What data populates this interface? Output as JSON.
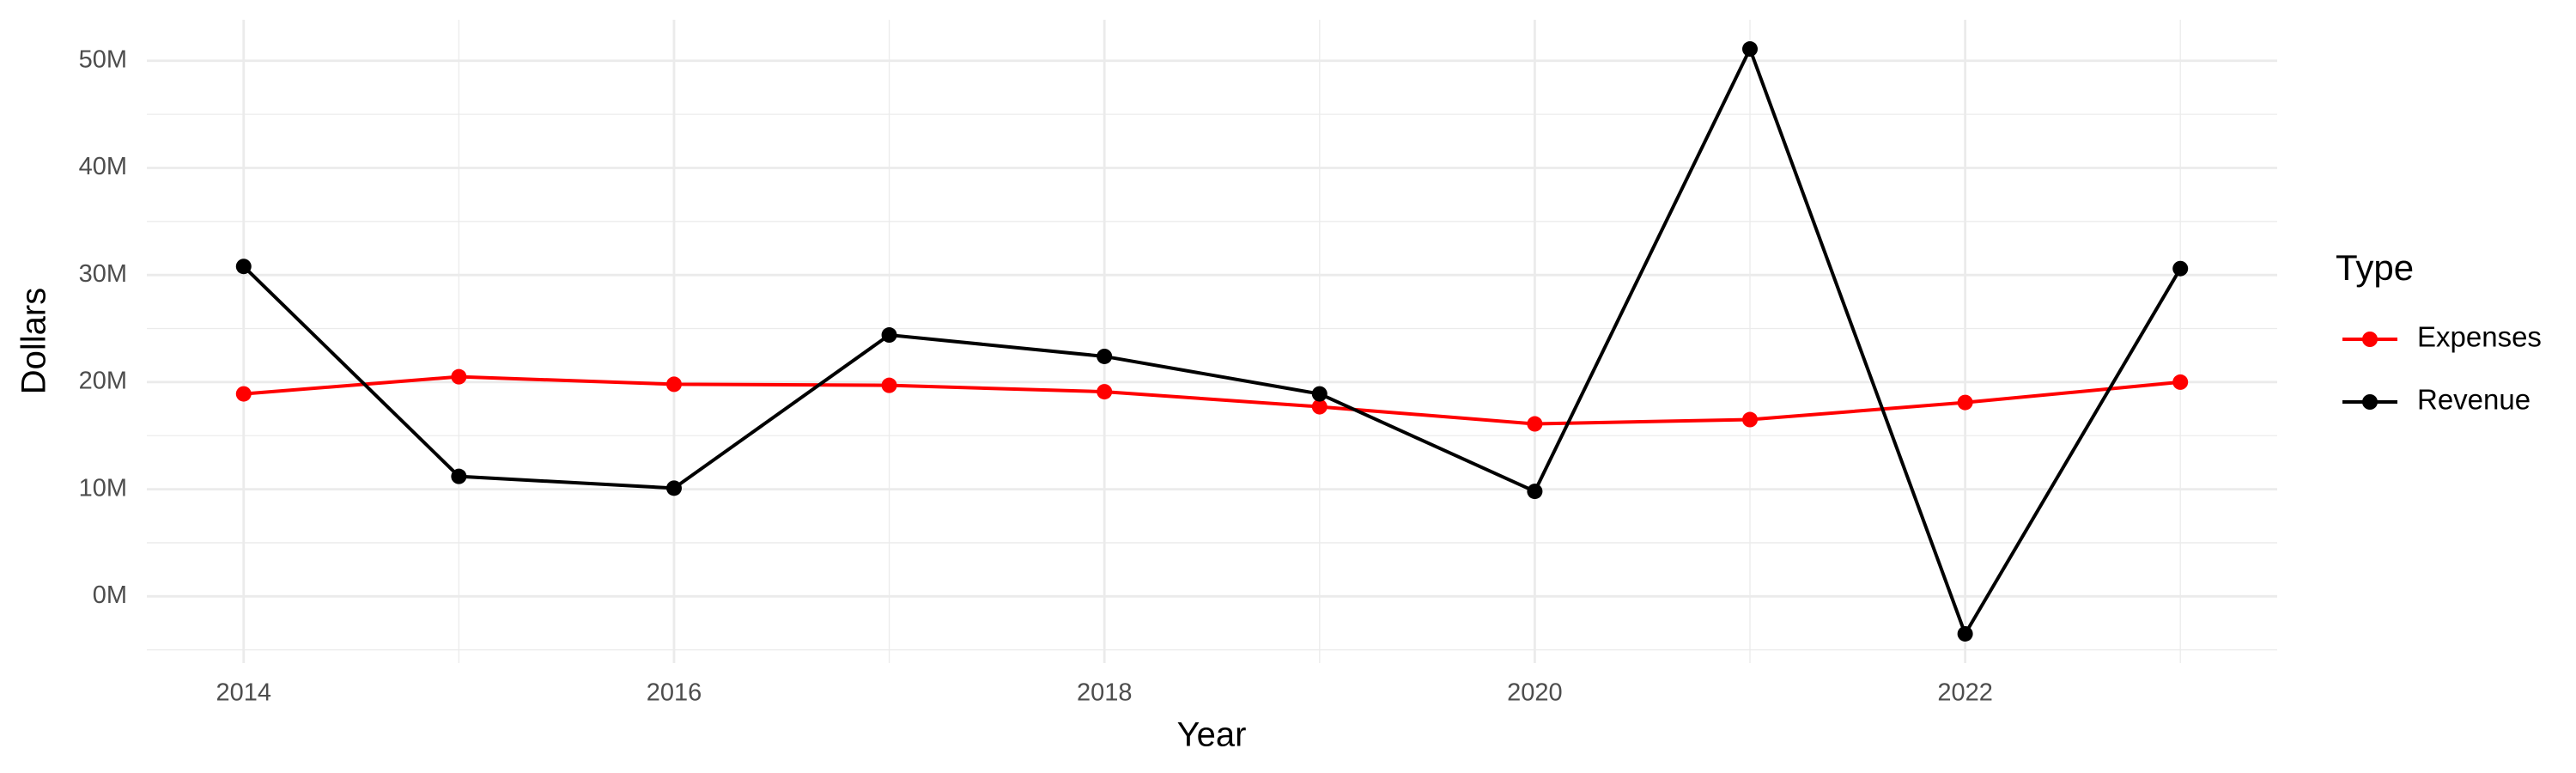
{
  "chart_data": {
    "type": "line",
    "x_label": "Year",
    "y_label": "Dollars",
    "legend_title": "Type",
    "x": [
      2014,
      2015,
      2016,
      2017,
      2018,
      2019,
      2020,
      2021,
      2022,
      2023
    ],
    "series": [
      {
        "name": "Expenses",
        "color": "#ff0000",
        "values": [
          18900000,
          20500000,
          19800000,
          19700000,
          19100000,
          17700000,
          16100000,
          16500000,
          18100000,
          20000000
        ]
      },
      {
        "name": "Revenue",
        "color": "#000000",
        "values": [
          30800000,
          11200000,
          10100000,
          24400000,
          22400000,
          18900000,
          9800000,
          51100000,
          -3500000,
          30600000
        ]
      }
    ],
    "xlim": [
      2013.55,
      2023.45
    ],
    "xticks": [
      2014,
      2016,
      2018,
      2020,
      2022
    ],
    "ylim": [
      -6230000,
      53830000
    ],
    "yticks": [
      {
        "value": 0,
        "label": "0M"
      },
      {
        "value": 10000000,
        "label": "10M"
      },
      {
        "value": 20000000,
        "label": "20M"
      },
      {
        "value": 30000000,
        "label": "30M"
      },
      {
        "value": 40000000,
        "label": "40M"
      },
      {
        "value": 50000000,
        "label": "50M"
      }
    ],
    "grid": true,
    "legend": "right"
  }
}
